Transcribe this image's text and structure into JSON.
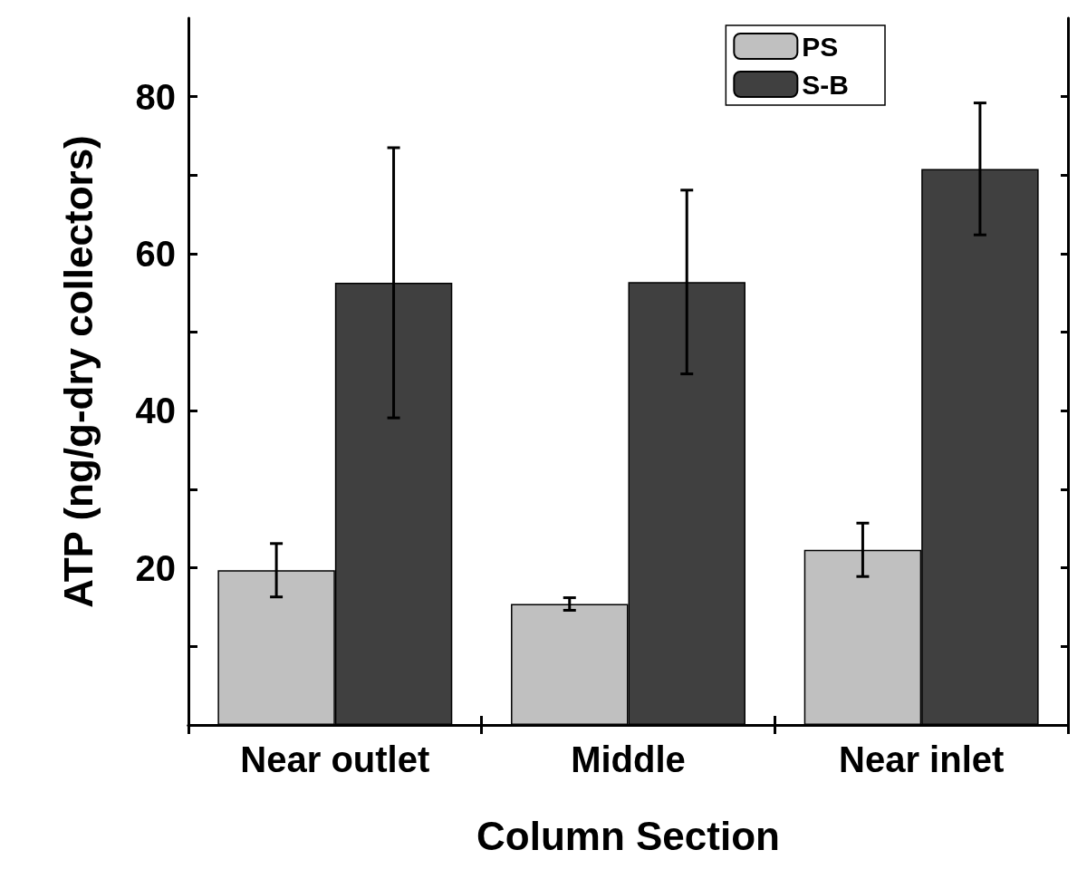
{
  "chart_data": {
    "type": "bar",
    "xlabel": "Column Section",
    "ylabel": "ATP (ng/g-dry collectors)",
    "categories": [
      "Near outlet",
      "Middle",
      "Near inlet"
    ],
    "series": [
      {
        "name": "PS",
        "color": "#c0c0c0",
        "values": [
          19.7,
          15.4,
          22.3
        ],
        "errors": [
          3.4,
          0.8,
          3.4
        ]
      },
      {
        "name": "S-B",
        "color": "#404040",
        "values": [
          56.3,
          56.4,
          70.8
        ],
        "errors": [
          17.2,
          11.7,
          8.4
        ]
      }
    ],
    "ylim": [
      0,
      90
    ],
    "yticks": [
      {
        "value": 10,
        "label": null
      },
      20,
      {
        "value": 30,
        "label": null
      },
      40,
      {
        "value": 50,
        "label": null
      },
      60,
      {
        "value": 70,
        "label": null
      },
      80
    ],
    "grid": false,
    "legend": "top right"
  }
}
